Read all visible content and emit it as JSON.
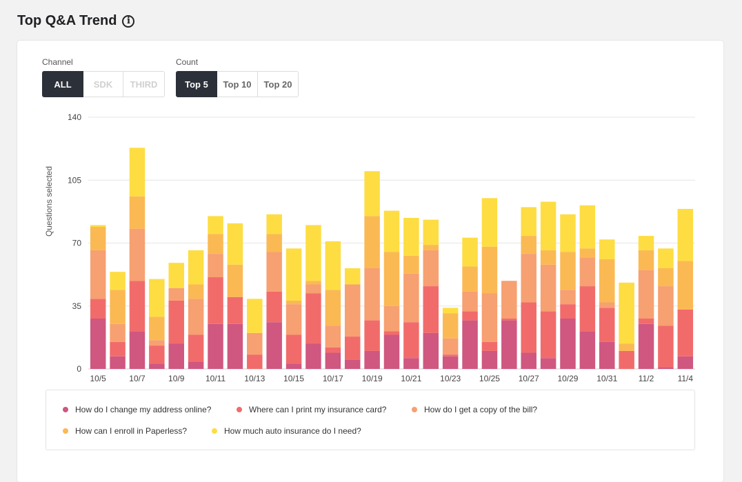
{
  "header": {
    "title": "Top Q&A Trend",
    "info_icon": "info-icon",
    "info_glyph": "i"
  },
  "filters": {
    "channel": {
      "label": "Channel",
      "options": [
        {
          "label": "ALL",
          "state": "active"
        },
        {
          "label": "SDK",
          "state": "disabled"
        },
        {
          "label": "THIRD",
          "state": "disabled"
        }
      ]
    },
    "count": {
      "label": "Count",
      "options": [
        {
          "label": "Top 5",
          "state": "active"
        },
        {
          "label": "Top 10",
          "state": "normal"
        },
        {
          "label": "Top 20",
          "state": "normal"
        }
      ]
    }
  },
  "chart_data": {
    "type": "bar",
    "stacked": true,
    "ylabel": "Questions selected",
    "ylim": [
      0,
      140
    ],
    "yticks": [
      0,
      35,
      70,
      105,
      140
    ],
    "grid": true,
    "legend_position": "bottom",
    "categories": [
      "10/5",
      "10/6",
      "10/7",
      "10/8",
      "10/9",
      "10/10",
      "10/11",
      "10/12",
      "10/13",
      "10/14",
      "10/15",
      "10/16",
      "10/17",
      "10/18",
      "10/19",
      "10/20",
      "10/21",
      "10/22",
      "10/23",
      "10/24",
      "10/25",
      "10/26",
      "10/27",
      "10/28",
      "10/29",
      "10/30",
      "10/31",
      "11/1",
      "11/2",
      "11/3",
      "11/4"
    ],
    "xtick_labels": [
      "10/5",
      "10/7",
      "10/9",
      "10/11",
      "10/13",
      "10/15",
      "10/17",
      "10/19",
      "10/21",
      "10/23",
      "10/25",
      "10/27",
      "10/29",
      "10/31",
      "11/2",
      "11/4"
    ],
    "series": [
      {
        "name": "How do I change my address online?",
        "color": "#cf5780",
        "values": [
          28,
          7,
          21,
          3,
          14,
          4,
          25,
          25,
          0,
          26,
          3,
          14,
          9,
          5,
          10,
          19,
          6,
          20,
          7,
          27,
          10,
          27,
          9,
          6,
          28,
          21,
          15,
          0,
          25,
          1,
          7
        ]
      },
      {
        "name": "Where can I print my insurance card?",
        "color": "#f26b6b",
        "values": [
          11,
          8,
          28,
          10,
          24,
          15,
          26,
          15,
          8,
          17,
          16,
          28,
          3,
          13,
          17,
          2,
          20,
          26,
          1,
          5,
          5,
          1,
          28,
          26,
          8,
          25,
          19,
          10,
          3,
          23,
          26
        ]
      },
      {
        "name": "How do I get a copy of the bill?",
        "color": "#f7a071",
        "values": [
          27,
          10,
          29,
          3,
          7,
          20,
          13,
          0,
          12,
          22,
          17,
          5,
          12,
          29,
          29,
          14,
          27,
          20,
          9,
          11,
          27,
          21,
          27,
          26,
          8,
          16,
          3,
          0,
          27,
          22,
          0
        ]
      },
      {
        "name": "How can I enroll in Paperless?",
        "color": "#fbb954",
        "values": [
          13,
          19,
          18,
          13,
          0,
          8,
          11,
          18,
          0,
          10,
          2,
          2,
          20,
          0,
          29,
          30,
          10,
          3,
          14,
          14,
          26,
          0,
          10,
          8,
          21,
          5,
          24,
          4,
          11,
          10,
          27
        ]
      },
      {
        "name": "How much auto insurance do I need?",
        "color": "#fedd43",
        "values": [
          1,
          10,
          27,
          21,
          14,
          19,
          10,
          23,
          19,
          11,
          29,
          31,
          27,
          9,
          25,
          23,
          21,
          14,
          3,
          16,
          27,
          0,
          16,
          27,
          21,
          24,
          11,
          34,
          8,
          11,
          29
        ]
      }
    ]
  }
}
